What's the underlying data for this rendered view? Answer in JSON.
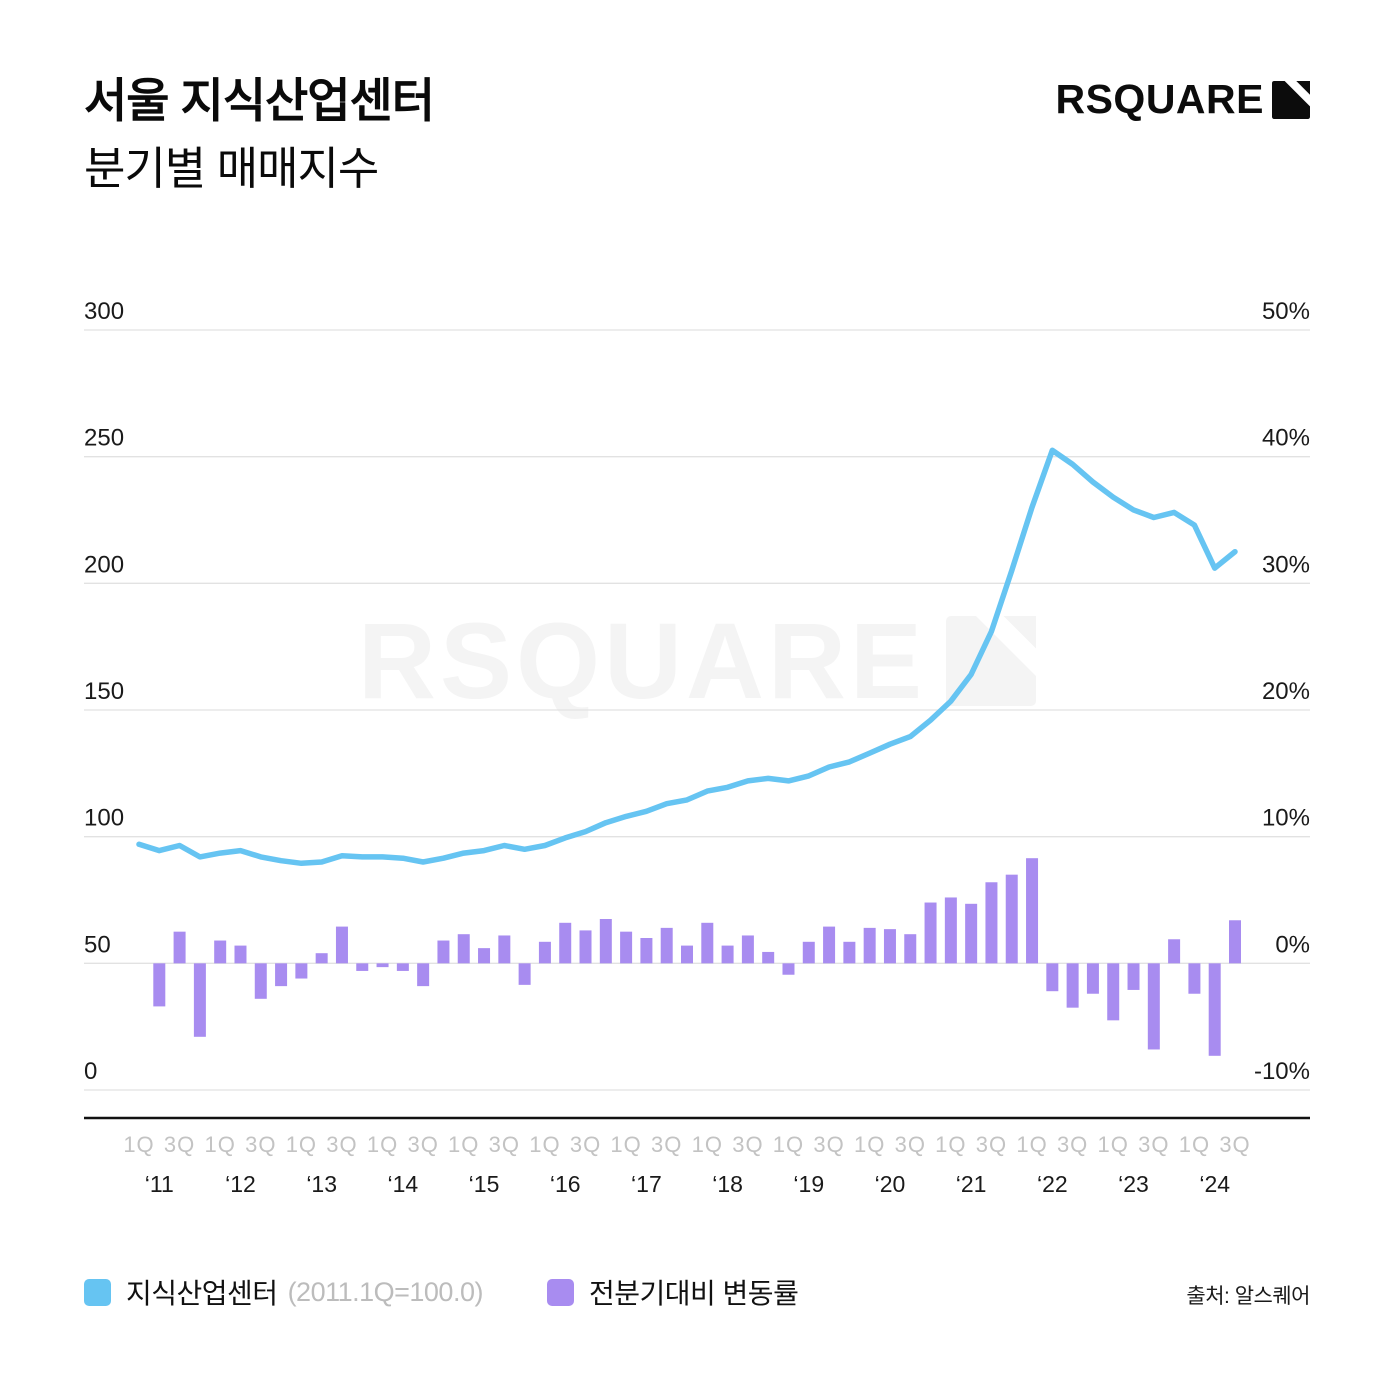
{
  "header": {
    "title_line1": "서울 지식산업센터",
    "title_line2": "분기별 매매지수",
    "logo_text": "RSQUARE"
  },
  "watermark": {
    "text": "RSQUARE"
  },
  "legend": {
    "series1_label": "지식산업센터",
    "series1_note": "(2011.1Q=100.0)",
    "series2_label": "전분기대비 변동률"
  },
  "source_text": "출처: 알스퀘어",
  "colors": {
    "line": "#66c4f2",
    "bar": "#a88cf0",
    "grid": "#e2e2e2",
    "axis": "#111111",
    "tick_dark": "#1a1a1a",
    "tick_muted": "#c3c3c3",
    "watermark": "#f4f4f4",
    "logo": "#0c0c0c"
  },
  "chart_data": {
    "type": "line+bar",
    "title": "서울 지식산업센터 분기별 매매지수",
    "left_axis": {
      "label": "매매지수 (2011.1Q=100.0)",
      "ticks": [
        300,
        250,
        200,
        150,
        100,
        50,
        0
      ],
      "range": [
        0,
        300
      ],
      "grid": true
    },
    "right_axis": {
      "label": "전분기대비 변동률",
      "tick_labels": [
        "50%",
        "40%",
        "30%",
        "20%",
        "10%",
        "0%",
        "-10%"
      ],
      "ticks": [
        50,
        40,
        30,
        20,
        10,
        0,
        -10
      ],
      "range": [
        -10,
        50
      ]
    },
    "x_years": [
      "‘11",
      "‘12",
      "‘13",
      "‘14",
      "‘15",
      "‘16",
      "‘17",
      "‘18",
      "‘19",
      "‘20",
      "‘21",
      "‘22",
      "‘23",
      "‘24"
    ],
    "quarters_per_year": [
      4,
      4,
      4,
      4,
      4,
      4,
      4,
      4,
      4,
      4,
      4,
      4,
      4,
      3
    ],
    "quarter_tick_labels": [
      "1Q",
      "3Q"
    ],
    "legend_position": "bottom",
    "series": [
      {
        "name": "지식산업센터",
        "type": "line",
        "axis": "left",
        "start_quarter_index": 0,
        "values": [
          97,
          94.5,
          96.5,
          92,
          93.5,
          94.5,
          92,
          90.5,
          89.5,
          90,
          92.5,
          92,
          92,
          91.5,
          90,
          91.5,
          93.5,
          94.5,
          96.5,
          95,
          96.5,
          99.5,
          102,
          105.5,
          108,
          110,
          113,
          114.5,
          118,
          119.5,
          122,
          123,
          122,
          124,
          127.5,
          129.5,
          133,
          136.5,
          139.5,
          146,
          153.5,
          164,
          181,
          205,
          230,
          252.5,
          247,
          240,
          234,
          229,
          226,
          228,
          223,
          206,
          212.5
        ]
      },
      {
        "name": "전분기대비 변동률",
        "type": "bar",
        "axis": "right",
        "unit": "%",
        "start_quarter_index": 1,
        "values": [
          -3.4,
          2.5,
          -5.8,
          1.8,
          1.4,
          -2.8,
          -1.8,
          -1.2,
          0.8,
          2.9,
          -0.6,
          -0.3,
          -0.6,
          -1.8,
          1.8,
          2.3,
          1.2,
          2.2,
          -1.7,
          1.7,
          3.2,
          2.6,
          3.5,
          2.5,
          2.0,
          2.8,
          1.4,
          3.2,
          1.4,
          2.2,
          0.9,
          -0.9,
          1.7,
          2.9,
          1.7,
          2.8,
          2.7,
          2.3,
          4.8,
          5.2,
          4.7,
          6.4,
          7.0,
          8.3,
          -2.2,
          -3.5,
          -2.4,
          -4.5,
          -2.1,
          -6.8,
          1.9,
          -2.4,
          -7.3,
          3.4
        ]
      }
    ]
  }
}
